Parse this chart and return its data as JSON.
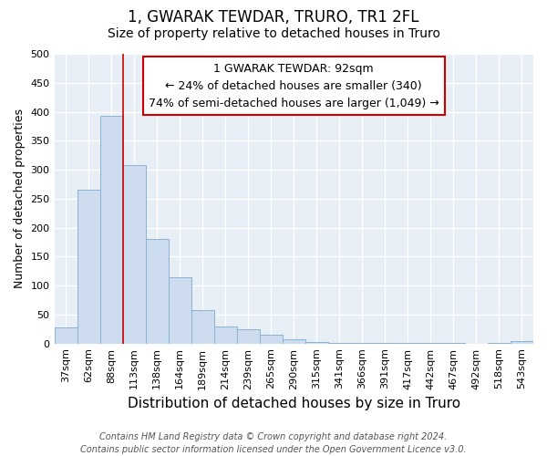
{
  "title": "1, GWARAK TEWDAR, TRURO, TR1 2FL",
  "subtitle": "Size of property relative to detached houses in Truro",
  "xlabel": "Distribution of detached houses by size in Truro",
  "ylabel": "Number of detached properties",
  "bar_labels": [
    "37sqm",
    "62sqm",
    "88sqm",
    "113sqm",
    "138sqm",
    "164sqm",
    "189sqm",
    "214sqm",
    "239sqm",
    "265sqm",
    "290sqm",
    "315sqm",
    "341sqm",
    "366sqm",
    "391sqm",
    "417sqm",
    "442sqm",
    "467sqm",
    "492sqm",
    "518sqm",
    "543sqm"
  ],
  "bar_values": [
    28,
    265,
    393,
    308,
    180,
    115,
    58,
    30,
    25,
    15,
    7,
    2,
    1,
    1,
    1,
    1,
    1,
    1,
    0,
    1,
    4
  ],
  "bar_color": "#ccdcee",
  "bar_edge_color": "#8ab4d4",
  "ylim": [
    0,
    500
  ],
  "yticks": [
    0,
    50,
    100,
    150,
    200,
    250,
    300,
    350,
    400,
    450,
    500
  ],
  "red_line_x": 2.5,
  "annotation_title": "1 GWARAK TEWDAR: 92sqm",
  "annotation_line1": "← 24% of detached houses are smaller (340)",
  "annotation_line2": "74% of semi-detached houses are larger (1,049) →",
  "annotation_box_facecolor": "#ffffff",
  "annotation_box_edgecolor": "#cc0000",
  "red_line_color": "#cc0000",
  "footnote1": "Contains HM Land Registry data © Crown copyright and database right 2024.",
  "footnote2": "Contains public sector information licensed under the Open Government Licence v3.0.",
  "fig_facecolor": "#ffffff",
  "plot_facecolor": "#e8eef5",
  "grid_color": "#ffffff",
  "title_fontsize": 12,
  "subtitle_fontsize": 10,
  "xlabel_fontsize": 11,
  "ylabel_fontsize": 9,
  "tick_fontsize": 8,
  "annotation_fontsize": 9,
  "footnote_fontsize": 7
}
